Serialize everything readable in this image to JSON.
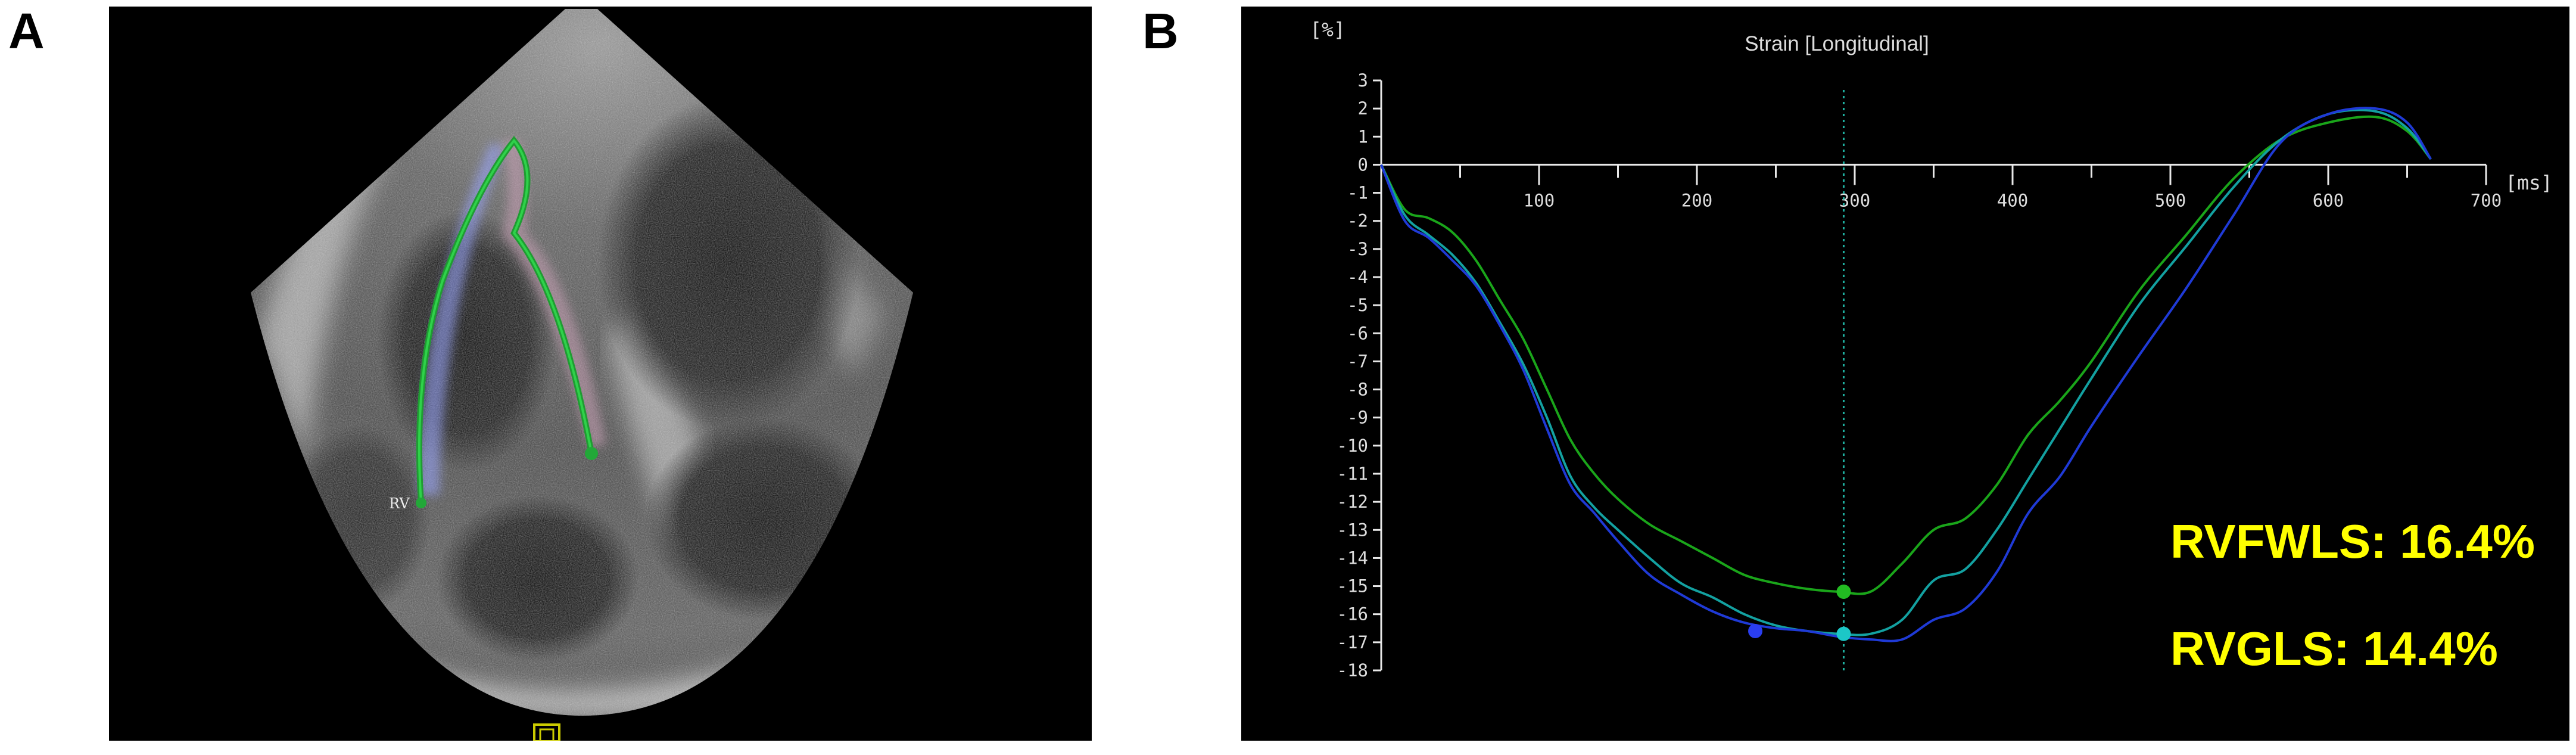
{
  "panels": {
    "a_label": "A",
    "b_label": "B"
  },
  "echo": {
    "rv_label": "RV"
  },
  "chart_data": {
    "type": "line",
    "title": "Strain [Longitudinal]",
    "ylabel": "[%]",
    "xlabel": "[ms]",
    "xlim": [
      0,
      700
    ],
    "ylim": [
      -18,
      3
    ],
    "xticks": [
      100,
      200,
      300,
      400,
      500,
      600,
      700
    ],
    "yticks": [
      3,
      2,
      1,
      0,
      -1,
      -2,
      -3,
      -4,
      -5,
      -6,
      -7,
      -8,
      -9,
      -10,
      -11,
      -12,
      -13,
      -14,
      -15,
      -16,
      -17,
      -18
    ],
    "marker_x": 293,
    "series": [
      {
        "name": "green",
        "color": "#1aa51a",
        "x": [
          0,
          15,
          30,
          45,
          60,
          75,
          90,
          105,
          120,
          135,
          150,
          170,
          190,
          210,
          230,
          250,
          270,
          290,
          310,
          330,
          350,
          370,
          390,
          410,
          430,
          450,
          480,
          510,
          540,
          570,
          600,
          630,
          650,
          665
        ],
        "y": [
          0,
          -1.6,
          -1.9,
          -2.4,
          -3.4,
          -4.8,
          -6.2,
          -8.0,
          -9.8,
          -11.0,
          -11.9,
          -12.8,
          -13.4,
          -14.0,
          -14.6,
          -14.9,
          -15.1,
          -15.2,
          -15.2,
          -14.2,
          -13.0,
          -12.6,
          -11.4,
          -9.6,
          -8.4,
          -7.0,
          -4.5,
          -2.5,
          -0.5,
          0.9,
          1.5,
          1.7,
          1.2,
          0.2
        ]
      },
      {
        "name": "teal",
        "color": "#13a1a1",
        "x": [
          0,
          15,
          30,
          45,
          60,
          75,
          90,
          105,
          120,
          135,
          150,
          170,
          190,
          210,
          230,
          250,
          270,
          290,
          310,
          330,
          350,
          370,
          390,
          410,
          430,
          450,
          480,
          510,
          540,
          570,
          600,
          630,
          650,
          665
        ],
        "y": [
          0,
          -1.8,
          -2.5,
          -3.2,
          -4.2,
          -5.6,
          -7.1,
          -9.0,
          -11.1,
          -12.2,
          -13.0,
          -14.0,
          -14.9,
          -15.4,
          -16.0,
          -16.4,
          -16.6,
          -16.7,
          -16.7,
          -16.2,
          -14.8,
          -14.4,
          -13.0,
          -11.2,
          -9.4,
          -7.6,
          -5.0,
          -2.9,
          -0.8,
          0.9,
          1.8,
          1.9,
          1.3,
          0.2
        ]
      },
      {
        "name": "blue",
        "color": "#1f3ad6",
        "x": [
          0,
          15,
          30,
          45,
          60,
          75,
          90,
          105,
          120,
          135,
          150,
          170,
          190,
          210,
          230,
          250,
          270,
          290,
          310,
          330,
          350,
          370,
          390,
          410,
          430,
          450,
          480,
          510,
          540,
          570,
          600,
          630,
          650,
          665
        ],
        "y": [
          0,
          -2.0,
          -2.6,
          -3.4,
          -4.3,
          -5.7,
          -7.3,
          -9.4,
          -11.4,
          -12.4,
          -13.4,
          -14.6,
          -15.3,
          -15.9,
          -16.3,
          -16.5,
          -16.6,
          -16.8,
          -16.9,
          -16.9,
          -16.2,
          -15.8,
          -14.5,
          -12.4,
          -11.1,
          -9.3,
          -6.8,
          -4.4,
          -1.8,
          0.8,
          1.8,
          2.0,
          1.5,
          0.2
        ]
      }
    ],
    "markers": [
      {
        "name": "green-marker",
        "color": "#22bb22",
        "x": 293,
        "y": -15.2
      },
      {
        "name": "teal-marker",
        "color": "#1cc7c7",
        "x": 293,
        "y": -16.7
      },
      {
        "name": "blue-marker",
        "color": "#2a3ef0",
        "x": 237,
        "y": -16.6
      }
    ],
    "annotations": [
      "RVFWLS: 16.4%",
      "RVGLS: 14.4%"
    ]
  }
}
